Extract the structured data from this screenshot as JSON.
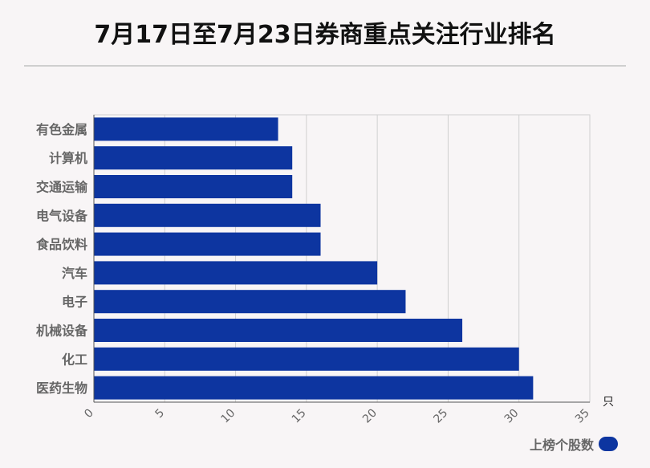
{
  "title": "7月17日至7月23日券商重点关注行业排名",
  "chart_data": {
    "type": "bar",
    "orientation": "horizontal",
    "categories": [
      "有色金属",
      "计算机",
      "交通运输",
      "电气设备",
      "食品饮料",
      "汽车",
      "电子",
      "机械设备",
      "化工",
      "医药生物"
    ],
    "series": [
      {
        "name": "上榜个股数",
        "values": [
          13,
          14,
          14,
          16,
          16,
          20,
          22,
          26,
          30,
          31
        ]
      }
    ],
    "xlim": [
      0,
      35
    ],
    "xticks": [
      "0",
      "5",
      "10",
      "15",
      "20",
      "25",
      "30",
      "35"
    ],
    "xunit": "只",
    "grid": true,
    "legend": "bottom-right",
    "color": "#0d35a0"
  }
}
